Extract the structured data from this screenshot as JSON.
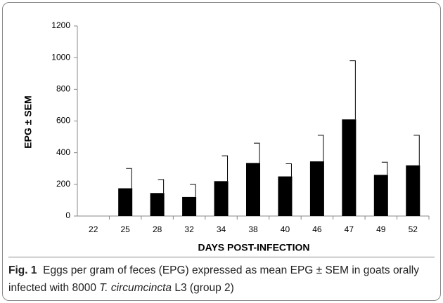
{
  "chart_data": {
    "type": "bar",
    "categories": [
      "22",
      "25",
      "28",
      "32",
      "34",
      "38",
      "40",
      "46",
      "47",
      "49",
      "52"
    ],
    "values": [
      0,
      175,
      145,
      120,
      220,
      335,
      250,
      345,
      610,
      260,
      320
    ],
    "errors": [
      null,
      125,
      85,
      80,
      160,
      125,
      80,
      165,
      370,
      80,
      190
    ],
    "color": "#000000",
    "ylim": [
      0,
      1200
    ],
    "yticks": [
      0,
      200,
      400,
      600,
      800,
      1000,
      1200
    ],
    "ylabel": "EPG ± SEM",
    "xlabel": "DAYS POST-INFECTION",
    "grid": false
  },
  "caption": {
    "label": "Fig. 1",
    "text": "Eggs per gram of feces (EPG) expressed as mean EPG ± SEM in goats orally infected with 8000 ",
    "species": "T. circumcincta",
    "tail": " L3 (group 2)"
  }
}
